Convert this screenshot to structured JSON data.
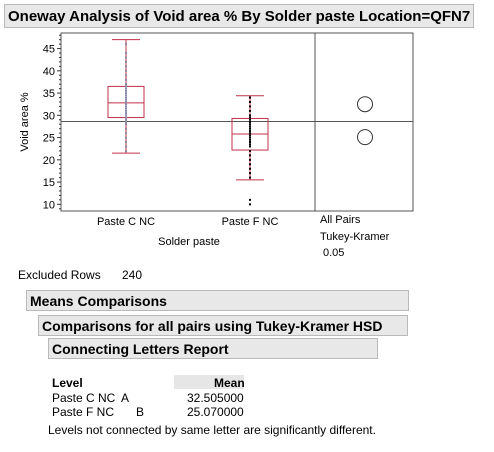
{
  "header": {
    "title": "Oneway Analysis of Void area % By Solder paste Location=QFN7"
  },
  "chart_data": {
    "type": "box",
    "ylabel": "Void area %",
    "xlabel": "Solder paste",
    "ylim": [
      8.5,
      48.5
    ],
    "yticks": [
      10,
      15,
      20,
      25,
      30,
      35,
      40,
      45
    ],
    "categories": [
      "Paste C NC",
      "Paste F NC"
    ],
    "grand_mean": 28.6,
    "boxes": [
      {
        "name": "Paste C NC",
        "min": 21.5,
        "q1": 29.5,
        "median": 32.8,
        "q3": 36.5,
        "max": 47.0,
        "points": [
          22,
          23,
          24,
          25,
          26,
          27,
          28,
          28.5,
          29,
          29.5,
          30,
          30.5,
          31,
          31.5,
          32,
          32.5,
          33,
          33.5,
          34,
          34.5,
          35,
          35.5,
          36,
          36.5,
          37,
          38,
          39,
          40,
          41,
          42,
          43,
          44,
          46
        ]
      },
      {
        "name": "Paste F NC",
        "min": 15.5,
        "q1": 22.2,
        "median": 25.8,
        "q3": 29.3,
        "max": 34.4,
        "points": [
          10,
          11,
          16,
          17,
          18,
          19,
          20,
          21,
          22,
          23,
          23.5,
          24,
          24.5,
          25,
          25.5,
          26,
          26.5,
          27,
          27.5,
          28,
          28.5,
          29,
          29.5,
          30,
          31,
          32,
          33,
          34
        ]
      }
    ],
    "comparison_circles": [
      32.5,
      25.1
    ],
    "comparison_labels": [
      "All Pairs",
      "Tukey-Kramer",
      "0.05"
    ],
    "colors": {
      "box": "#c0304a",
      "points": "#000000",
      "grid": "#808080"
    }
  },
  "excluded": {
    "label": "Excluded Rows",
    "value": "240"
  },
  "means": {
    "title": "Means Comparisons"
  },
  "tukey": {
    "title": "Comparisons for all pairs using Tukey-Kramer HSD"
  },
  "letters": {
    "title": "Connecting Letters Report",
    "col_level": "Level",
    "col_mean": "Mean",
    "rows": [
      {
        "level": "Paste C NC",
        "letter_a": "A",
        "letter_b": "",
        "mean": "32.505000"
      },
      {
        "level": "Paste F NC",
        "letter_a": "",
        "letter_b": "B",
        "mean": "25.070000"
      }
    ],
    "footnote": "Levels not connected by same letter are significantly different."
  }
}
